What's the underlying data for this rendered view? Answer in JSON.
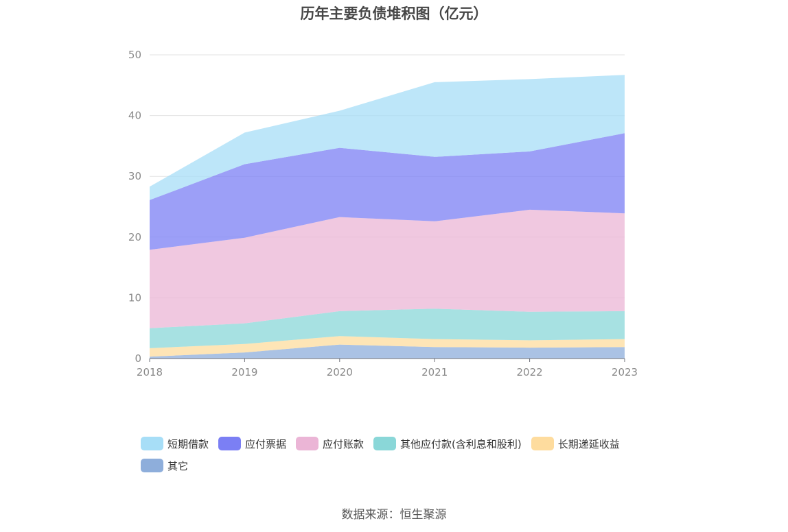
{
  "title": "历年主要负债堆积图（亿元）",
  "source": "数据来源：恒生聚源",
  "chart_data": {
    "type": "area",
    "stacked": true,
    "x": [
      "2018",
      "2019",
      "2020",
      "2021",
      "2022",
      "2023"
    ],
    "ylim": [
      0,
      50
    ],
    "yticks": [
      0,
      10,
      20,
      30,
      40,
      50
    ],
    "grid": true,
    "legend_position": "bottom",
    "series": [
      {
        "name": "其它",
        "color": "#8eaedb",
        "values": [
          0.3,
          1.0,
          2.3,
          1.9,
          1.8,
          1.9
        ]
      },
      {
        "name": "长期递延收益",
        "color": "#fedc9e",
        "values": [
          1.4,
          1.4,
          1.4,
          1.3,
          1.2,
          1.3
        ]
      },
      {
        "name": "其他应付款(含利息和股利)",
        "color": "#8ad7d8",
        "values": [
          3.3,
          3.4,
          4.1,
          5.0,
          4.7,
          4.6
        ]
      },
      {
        "name": "应付账款",
        "color": "#ebb5d6",
        "values": [
          12.9,
          14.1,
          15.5,
          14.4,
          16.8,
          16.1
        ]
      },
      {
        "name": "应付票据",
        "color": "#7b7ff4",
        "values": [
          8.2,
          12.1,
          11.4,
          10.6,
          9.6,
          13.2
        ]
      },
      {
        "name": "短期借款",
        "color": "#a7def7",
        "values": [
          2.2,
          5.2,
          6.1,
          12.3,
          11.9,
          9.6
        ]
      }
    ]
  }
}
